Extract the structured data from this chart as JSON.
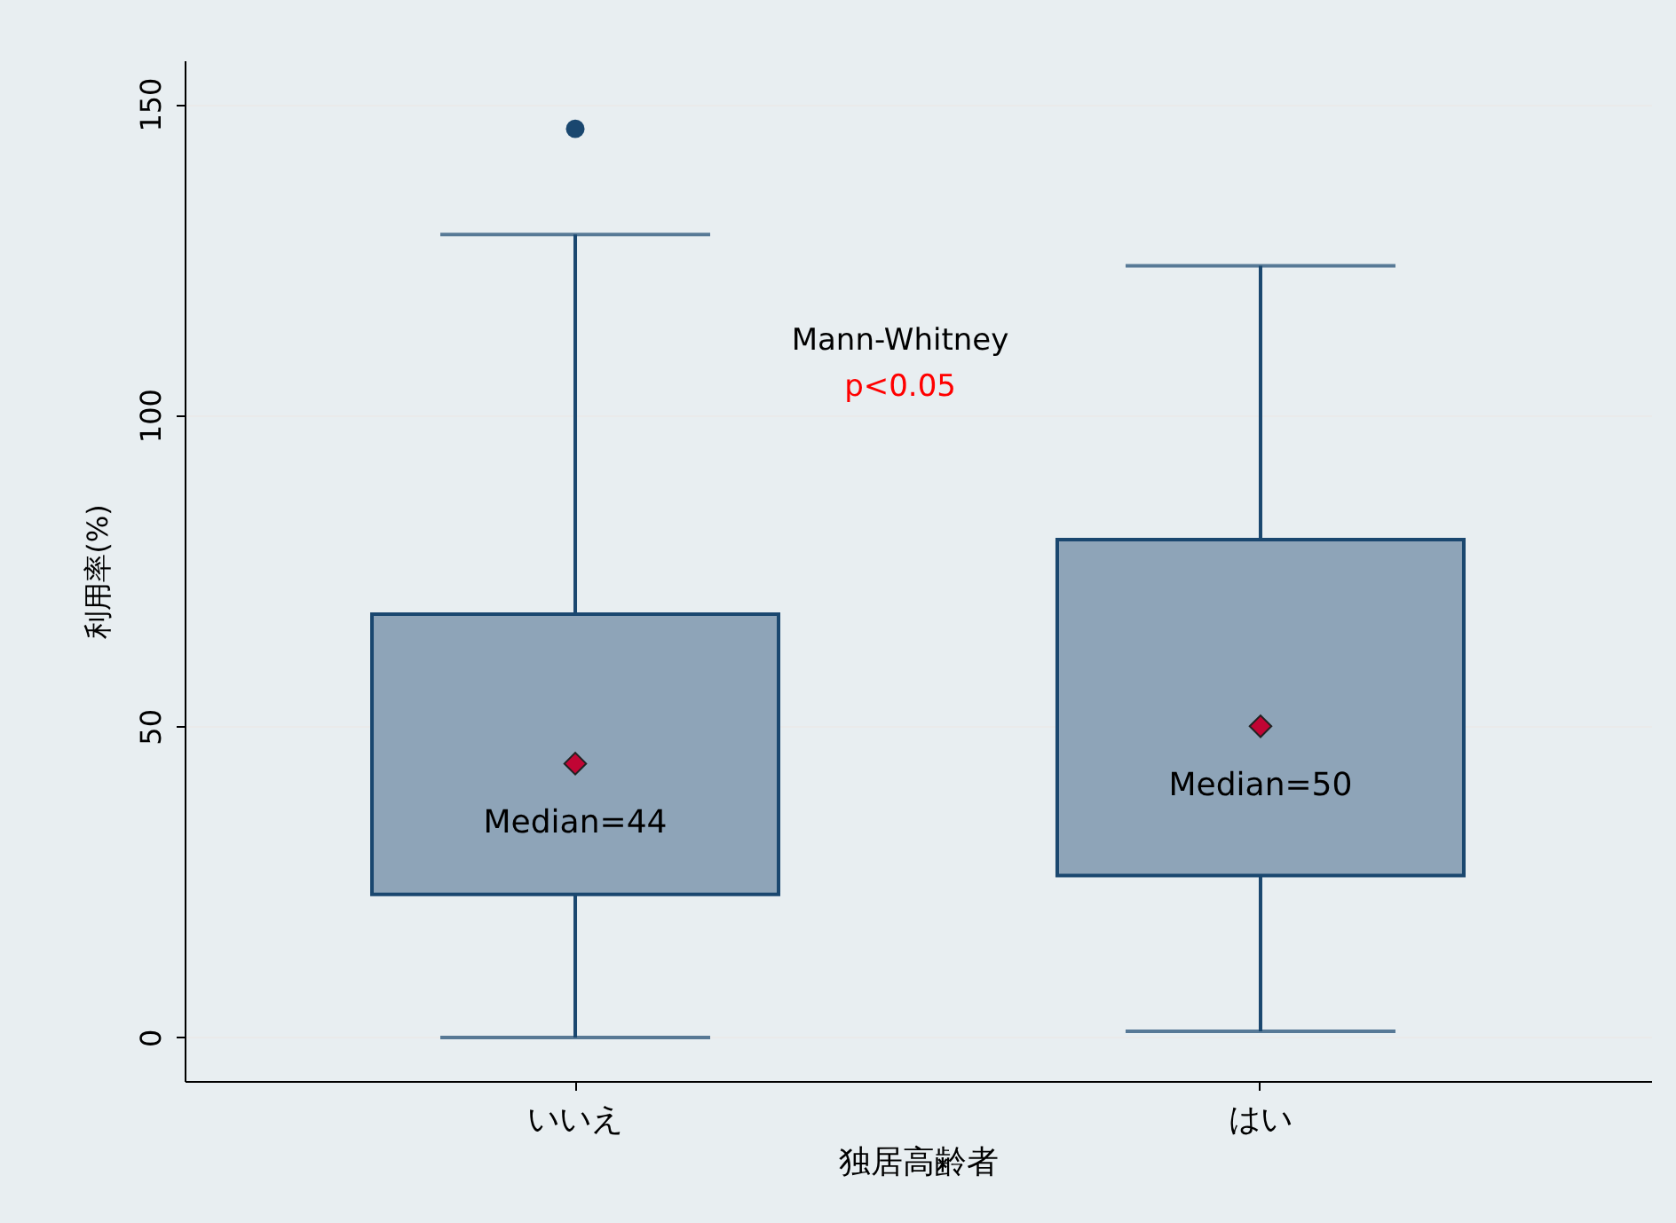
{
  "chart_data": {
    "type": "box",
    "categories": [
      "いいえ",
      "はい"
    ],
    "series": [
      {
        "color": "#8ea4b8",
        "boxes": [
          {
            "low": 0,
            "q1": 23,
            "median": 44,
            "q3": 68,
            "high": 129,
            "outliers": [
              146
            ]
          },
          {
            "low": 1,
            "q1": 26,
            "median": 50,
            "q3": 80,
            "high": 124
          }
        ]
      }
    ],
    "xlabel": "独居高齢者",
    "ylabel": "利用率(%)",
    "ylim": [
      -7,
      157
    ],
    "yticks": [
      0,
      50,
      100,
      150
    ],
    "grid": "y",
    "marker": "diamond",
    "annotations": [
      "Mann-Whitney",
      "p<0.05",
      "Median=44",
      "Median=50"
    ]
  }
}
